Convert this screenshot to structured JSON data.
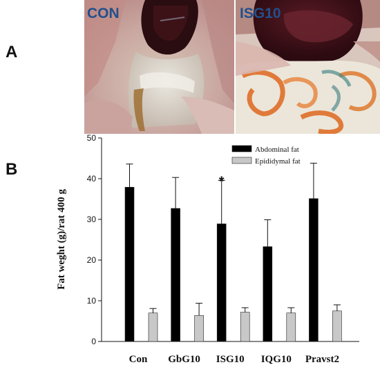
{
  "figure": {
    "panel_a_letter": "A",
    "panel_b_letter": "B",
    "photo_con_label": "CON",
    "photo_isg_label": "ISG10",
    "colors": {
      "photo_label": "#21508c",
      "abdominal_bar": "#000000",
      "epididymal_bar": "#c8c8c8"
    }
  },
  "chart_data": {
    "type": "bar",
    "title": "",
    "xlabel": "",
    "ylabel": "Fat weght (g)/rat 400 g",
    "ylim": [
      0,
      50
    ],
    "yticks": [
      "0",
      "10",
      "20",
      "30",
      "40",
      "50"
    ],
    "categories": [
      "Con",
      "GbG10",
      "ISG10",
      "IQG10",
      "Pravst2"
    ],
    "series": [
      {
        "name": "Abdominal fat",
        "color": "#000000",
        "values": [
          37.9,
          32.7,
          28.9,
          23.3,
          35.1
        ],
        "errors": [
          5.7,
          7.6,
          10.7,
          6.6,
          8.7
        ]
      },
      {
        "name": "Epididymal fat",
        "color": "#c8c8c8",
        "values": [
          7.0,
          6.4,
          7.2,
          7.0,
          7.5
        ],
        "errors": [
          1.1,
          3.0,
          1.1,
          1.3,
          1.5
        ]
      }
    ],
    "legend_position": "top-right",
    "annotations": [
      {
        "text": "*",
        "category": "ISG10",
        "series": "Abdominal fat"
      }
    ],
    "grid": false
  }
}
